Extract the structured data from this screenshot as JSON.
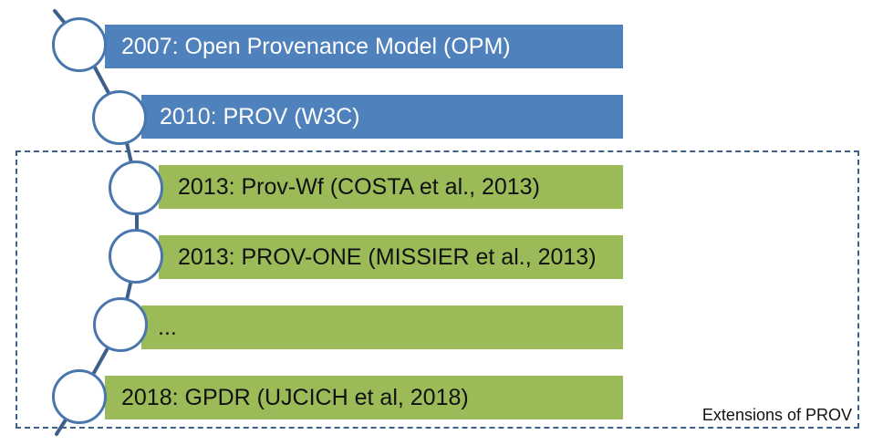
{
  "timeline": {
    "items": [
      {
        "label": "2007: Open Provenance Model (OPM)",
        "color": "#4f81bd",
        "text_color": "#ffffff"
      },
      {
        "label": "2010: PROV (W3C)",
        "color": "#4f81bd",
        "text_color": "#ffffff"
      },
      {
        "label": "2013: Prov-Wf (COSTA et al., 2013)",
        "color": "#9bbb59",
        "text_color": "#111111"
      },
      {
        "label": "2013: PROV-ONE (MISSIER et al., 2013)",
        "color": "#9bbb59",
        "text_color": "#111111"
      },
      {
        "label": "...",
        "color": "#9bbb59",
        "text_color": "#111111"
      },
      {
        "label": "2018: GPDR (UJCICH et al, 2018)",
        "color": "#9bbb59",
        "text_color": "#111111"
      }
    ],
    "line_color": "#3e5f8a",
    "node_border_color": "#4a76ae"
  },
  "group": {
    "label": "Extensions of PROV",
    "border_color": "#3e5f8a"
  }
}
